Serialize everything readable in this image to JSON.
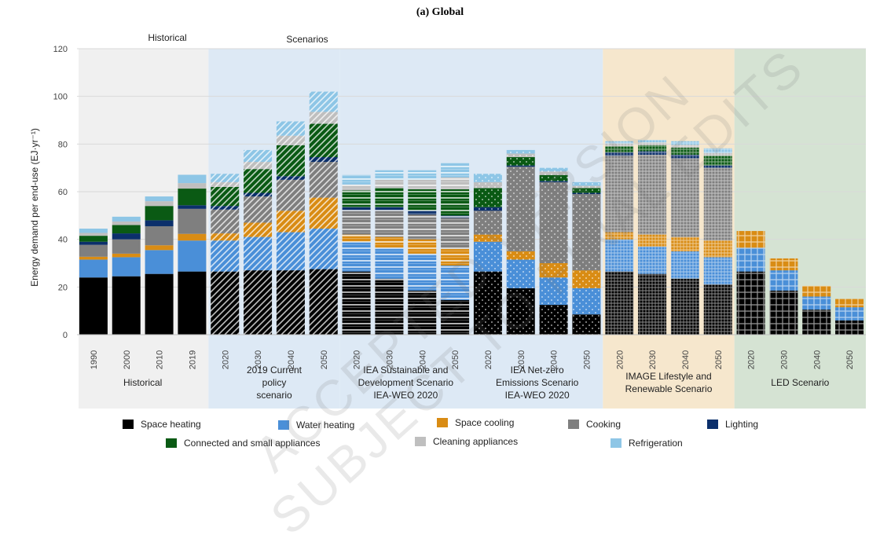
{
  "chart_data": {
    "type": "bar",
    "stacked": true,
    "title": "(a)  Global",
    "ylabel": "Energy demand per end-use (EJ·yr⁻¹)",
    "ylim": [
      0,
      120
    ],
    "yticks": [
      0,
      20,
      40,
      60,
      80,
      100,
      120
    ],
    "group_headers": [
      "Historical",
      "Scenarios"
    ],
    "series": [
      {
        "name": "Space heating",
        "color": "#000000"
      },
      {
        "name": "Water heating",
        "color": "#4a8fd8"
      },
      {
        "name": "Space cooling",
        "color": "#d98c14"
      },
      {
        "name": "Cooking",
        "color": "#7f7f7f"
      },
      {
        "name": "Lighting",
        "color": "#0b2f6b"
      },
      {
        "name": "Connected and small appliances",
        "color": "#0a5a14"
      },
      {
        "name": "Cleaning appliances",
        "color": "#bfbfbf"
      },
      {
        "name": "Refrigeration",
        "color": "#8ec6e6"
      }
    ],
    "groups": [
      {
        "label": "Historical",
        "pattern": "solid",
        "bg": "#f0f0f0",
        "bars": [
          {
            "x": "1990",
            "values": [
              24,
              7.5,
              1.2,
              5,
              1.3,
              2.5,
              1.2,
              1.8
            ]
          },
          {
            "x": "2000",
            "values": [
              24.5,
              8,
              1.5,
              6,
              2.5,
              3.5,
              1.5,
              2
            ]
          },
          {
            "x": "2010",
            "values": [
              25.5,
              10,
              2,
              8,
              2.5,
              6,
              2,
              2
            ]
          },
          {
            "x": "2019",
            "values": [
              26.5,
              13,
              2.8,
              10.5,
              1.5,
              7,
              2.3,
              3.5
            ]
          }
        ]
      },
      {
        "label": "2019 Current\npolicy\nscenario",
        "pattern": "diag",
        "bg": "#dde9f5",
        "bars": [
          {
            "x": "2020",
            "values": [
              26.5,
              13,
              3,
              10,
              1.5,
              8,
              2,
              3.5
            ]
          },
          {
            "x": "2030",
            "values": [
              27,
              14,
              6,
              11,
              1.5,
              10,
              3,
              5
            ]
          },
          {
            "x": "2040",
            "values": [
              27,
              16,
              9,
              13,
              1.5,
              13,
              4,
              6
            ]
          },
          {
            "x": "2050",
            "values": [
              27.5,
              17,
              13,
              15,
              2,
              14,
              5,
              8.5
            ]
          }
        ]
      },
      {
        "label": "IEA Sustainable and\nDevelopment Scenario\nIEA-WEO 2020",
        "pattern": "horiz",
        "bg": "#dde9f5",
        "bars": [
          {
            "x": "2020",
            "values": [
              26.5,
              12.5,
              3,
              10,
              1.5,
              7,
              2.5,
              4
            ]
          },
          {
            "x": "2030",
            "values": [
              23.5,
              13,
              4.5,
              11,
              1.5,
              8,
              3.5,
              4
            ]
          },
          {
            "x": "2040",
            "values": [
              18.5,
              15.5,
              6,
              10.5,
              1.5,
              9,
              4,
              4
            ]
          },
          {
            "x": "2050",
            "values": [
              14.5,
              14.5,
              7,
              13,
              1,
              11,
              5,
              6
            ]
          }
        ]
      },
      {
        "label": "IEA Net-zero\nEmissions Scenario\nIEA-WEO 2020",
        "pattern": "dots",
        "bg": "#dde9f5",
        "bars": [
          {
            "x": "2020",
            "values": [
              26.5,
              12.5,
              3,
              10,
              1.5,
              8,
              2.5,
              3.5
            ]
          },
          {
            "x": "2030",
            "values": [
              19.5,
              12,
              3.5,
              35.5,
              0.5,
              3.5,
              1.5,
              1.5
            ]
          },
          {
            "x": "2040",
            "values": [
              12.5,
              11.5,
              6,
              34,
              0.5,
              2.5,
              1.5,
              1.5
            ]
          },
          {
            "x": "2050",
            "values": [
              8.5,
              11,
              7.5,
              32,
              0.5,
              2,
              1,
              1.5
            ]
          }
        ]
      },
      {
        "label": "IMAGE Lifestyle and\nRenewable Scenario",
        "pattern": "cross",
        "bg": "#f6e7cd",
        "bars": [
          {
            "x": "2020",
            "values": [
              26.5,
              13.5,
              3,
              32,
              1.5,
              2.5,
              1.2,
              1
            ]
          },
          {
            "x": "2030",
            "values": [
              25.5,
              11.5,
              5,
              33.5,
              1.5,
              2.5,
              1.2,
              1
            ]
          },
          {
            "x": "2040",
            "values": [
              23.5,
              11.5,
              6,
              33,
              1.5,
              3,
              1.2,
              1.5
            ]
          },
          {
            "x": "2050",
            "values": [
              21,
              11.5,
              7,
              30.5,
              1,
              4,
              1.2,
              2
            ]
          }
        ]
      },
      {
        "label": "LED Scenario",
        "pattern": "grid",
        "bg": "#d5e3d3",
        "bars": [
          {
            "x": "2020",
            "values": [
              26.5,
              10,
              7,
              0,
              0,
              0,
              0,
              0
            ]
          },
          {
            "x": "2030",
            "values": [
              18.5,
              8.5,
              5,
              0,
              0,
              0,
              0,
              0
            ]
          },
          {
            "x": "2040",
            "values": [
              10.5,
              5.5,
              4.5,
              0,
              0,
              0,
              0,
              0
            ]
          },
          {
            "x": "2050",
            "values": [
              6,
              5.5,
              3.5,
              0,
              0,
              0,
              0,
              0
            ]
          }
        ]
      }
    ]
  },
  "watermark": {
    "line1": "ACCEPTED VERSION",
    "line2": "SUBJECT TO FINAL EDITS"
  }
}
